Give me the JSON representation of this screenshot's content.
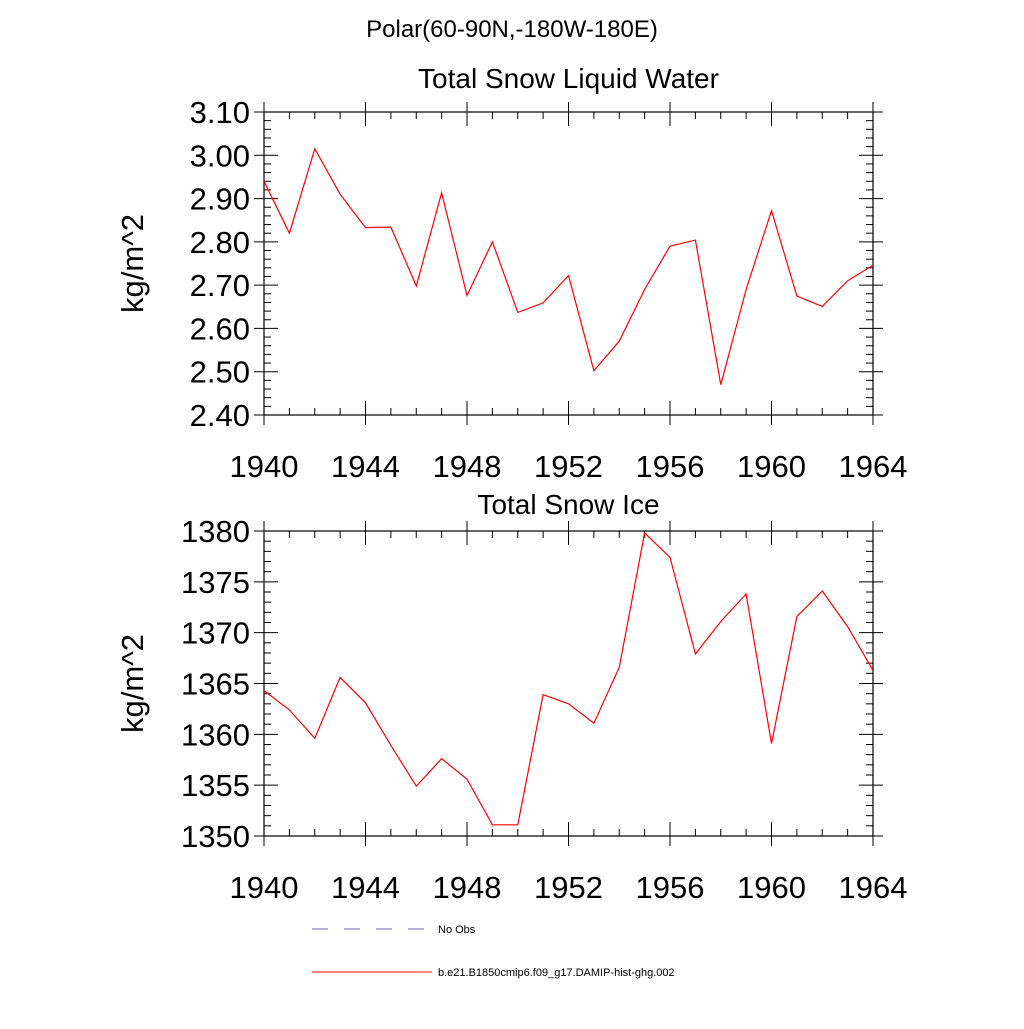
{
  "figure": {
    "title": "Polar(60-90N,-180W-180E)"
  },
  "chart_data": [
    {
      "type": "line",
      "title": "Total Snow Liquid Water",
      "xlabel": "",
      "ylabel": "kg/m^2",
      "xlim": [
        1940,
        1964
      ],
      "ylim": [
        2.4,
        3.1
      ],
      "xticks": [
        "1940",
        "1944",
        "1948",
        "1952",
        "1956",
        "1960",
        "1964"
      ],
      "yticks": [
        "2.40",
        "2.50",
        "2.60",
        "2.70",
        "2.80",
        "2.90",
        "3.00",
        "3.10"
      ],
      "grid": false,
      "x": [
        1940,
        1941,
        1942,
        1943,
        1944,
        1945,
        1946,
        1947,
        1948,
        1949,
        1950,
        1951,
        1952,
        1953,
        1954,
        1955,
        1956,
        1957,
        1958,
        1959,
        1960,
        1961,
        1962,
        1963,
        1964
      ],
      "series": [
        {
          "name": "b.e21.B1850cmip6.f09_g17.DAMIP-hist-ghg.002",
          "color": "#ff0000",
          "values": [
            2.94,
            2.82,
            3.015,
            2.91,
            2.833,
            2.834,
            2.698,
            2.913,
            2.676,
            2.8,
            2.637,
            2.659,
            2.722,
            2.502,
            2.571,
            2.69,
            2.79,
            2.804,
            2.47,
            2.69,
            2.872,
            2.675,
            2.651,
            2.71,
            2.746
          ]
        }
      ]
    },
    {
      "type": "line",
      "title": "Total Snow Ice",
      "xlabel": "",
      "ylabel": "kg/m^2",
      "xlim": [
        1940,
        1964
      ],
      "ylim": [
        1350,
        1380
      ],
      "xticks": [
        "1940",
        "1944",
        "1948",
        "1952",
        "1956",
        "1960",
        "1964"
      ],
      "yticks": [
        "1350",
        "1355",
        "1360",
        "1365",
        "1370",
        "1375",
        "1380"
      ],
      "grid": false,
      "x": [
        1940,
        1941,
        1942,
        1943,
        1944,
        1945,
        1946,
        1947,
        1948,
        1949,
        1950,
        1951,
        1952,
        1953,
        1954,
        1955,
        1956,
        1957,
        1958,
        1959,
        1960,
        1961,
        1962,
        1963,
        1964
      ],
      "series": [
        {
          "name": "b.e21.B1850cmip6.f09_g17.DAMIP-hist-ghg.002",
          "color": "#ff0000",
          "values": [
            1364.3,
            1362.4,
            1359.6,
            1365.6,
            1363.1,
            1358.9,
            1354.9,
            1357.6,
            1355.6,
            1351.1,
            1351.1,
            1363.9,
            1363.0,
            1361.1,
            1366.6,
            1379.8,
            1377.4,
            1367.9,
            1371.1,
            1373.8,
            1359.1,
            1371.6,
            1374.1,
            1370.6,
            1366.3
          ]
        }
      ]
    }
  ],
  "legend": {
    "entries": [
      {
        "label": "No Obs",
        "color": "#6a6aa0",
        "style": "dashed"
      },
      {
        "label": "b.e21.B1850cmip6.f09_g17.DAMIP-hist-ghg.002",
        "color": "#ff0000",
        "style": "solid"
      }
    ]
  }
}
